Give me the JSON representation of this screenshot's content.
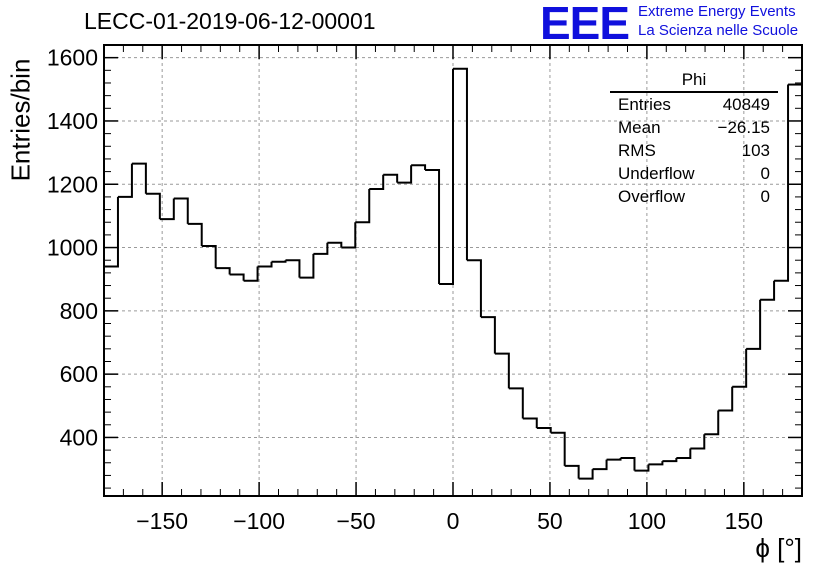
{
  "header": {
    "title": "LECC-01-2019-06-12-00001",
    "logo_mark": "EEE",
    "logo_line1": "Extreme Energy Events",
    "logo_line2": "La Scienza nelle Scuole"
  },
  "stats": {
    "name": "Phi",
    "rows": [
      {
        "label": "Entries",
        "value": "40849"
      },
      {
        "label": "Mean",
        "value": "−26.15"
      },
      {
        "label": "RMS",
        "value": "103"
      },
      {
        "label": "Underflow",
        "value": "0"
      },
      {
        "label": "Overflow",
        "value": "0"
      }
    ]
  },
  "colors": {
    "histogram": "#000000",
    "grid": "#9a9a9a",
    "logo": "#1010dd"
  },
  "chart_data": {
    "type": "bar",
    "style": "step-histogram",
    "title": "LECC-01-2019-06-12-00001",
    "xlabel": "ϕ [°]",
    "ylabel": "Entries/bin",
    "xlim": [
      -180,
      180
    ],
    "ylim": [
      215,
      1640
    ],
    "bin_width": 7.2,
    "x_ticks": [
      -150,
      -100,
      -50,
      0,
      50,
      100,
      150
    ],
    "y_ticks": [
      400,
      600,
      800,
      1000,
      1200,
      1400,
      1600
    ],
    "grid": true,
    "legend": "top-right",
    "values": [
      940,
      1160,
      1265,
      1170,
      1090,
      1155,
      1075,
      1005,
      935,
      915,
      895,
      940,
      955,
      960,
      905,
      980,
      1015,
      1000,
      1080,
      1185,
      1230,
      1205,
      1260,
      1245,
      885,
      1565,
      960,
      780,
      665,
      555,
      460,
      430,
      415,
      310,
      270,
      300,
      330,
      335,
      295,
      315,
      325,
      335,
      365,
      410,
      485,
      560,
      680,
      835,
      895,
      1515
    ]
  }
}
